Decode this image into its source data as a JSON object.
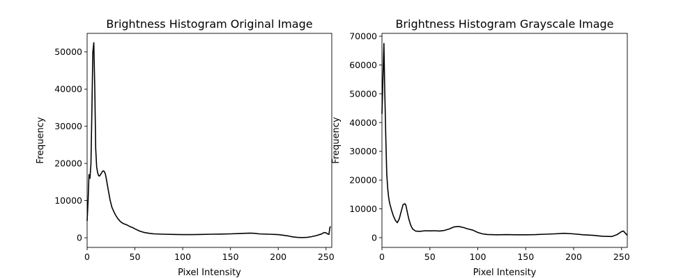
{
  "chart_data": [
    {
      "type": "line",
      "title": "Brightness Histogram Original Image",
      "xlabel": "Pixel Intensity",
      "ylabel": "Frequency",
      "xlim": [
        0,
        256
      ],
      "ylim": [
        -2600,
        55000
      ],
      "xticks": [
        0,
        50,
        100,
        150,
        200,
        250
      ],
      "yticks": [
        0,
        10000,
        20000,
        30000,
        40000,
        50000
      ],
      "grid": false,
      "line_color": "#000000",
      "series": [
        {
          "x": [
            0,
            1,
            2,
            3,
            4,
            5,
            6,
            7,
            8,
            9,
            10,
            11,
            12,
            13,
            14,
            15,
            16,
            17,
            18,
            19,
            20,
            22,
            24,
            26,
            28,
            30,
            32,
            35,
            38,
            40,
            42,
            45,
            48,
            50,
            55,
            60,
            65,
            70,
            80,
            90,
            100,
            110,
            120,
            130,
            140,
            150,
            160,
            165,
            170,
            175,
            180,
            190,
            200,
            205,
            210,
            215,
            220,
            225,
            230,
            235,
            240,
            245,
            248,
            250,
            252,
            253,
            254,
            255
          ],
          "y": [
            4500,
            10000,
            17000,
            16000,
            20000,
            35000,
            50000,
            52500,
            40000,
            24000,
            19000,
            17500,
            16700,
            16600,
            17000,
            17400,
            17800,
            18000,
            17800,
            17200,
            16000,
            13000,
            10200,
            8200,
            7000,
            6000,
            5200,
            4300,
            3800,
            3600,
            3400,
            3000,
            2700,
            2400,
            1800,
            1400,
            1200,
            1050,
            950,
            900,
            850,
            850,
            900,
            950,
            1000,
            1050,
            1150,
            1200,
            1250,
            1200,
            1050,
            950,
            850,
            700,
            500,
            250,
            100,
            50,
            100,
            300,
            600,
            1000,
            1400,
            1300,
            1000,
            900,
            2800,
            3000
          ]
        }
      ]
    },
    {
      "type": "line",
      "title": "Brightness Histogram Grayscale Image",
      "xlabel": "Pixel Intensity",
      "ylabel": "Frequency",
      "xlim": [
        0,
        256
      ],
      "ylim": [
        -3400,
        71000
      ],
      "xticks": [
        0,
        50,
        100,
        150,
        200,
        250
      ],
      "yticks": [
        0,
        10000,
        20000,
        30000,
        40000,
        50000,
        60000,
        70000
      ],
      "grid": false,
      "line_color": "#000000",
      "series": [
        {
          "x": [
            0,
            1,
            2,
            3,
            4,
            5,
            6,
            7,
            8,
            10,
            12,
            14,
            16,
            18,
            20,
            22,
            24,
            25,
            26,
            28,
            30,
            32,
            35,
            38,
            40,
            45,
            50,
            55,
            60,
            65,
            70,
            75,
            80,
            85,
            90,
            95,
            100,
            105,
            110,
            120,
            130,
            140,
            150,
            160,
            170,
            180,
            190,
            200,
            210,
            220,
            230,
            240,
            245,
            250,
            252,
            254,
            256
          ],
          "y": [
            43000,
            55000,
            67500,
            50000,
            35000,
            22000,
            17000,
            14000,
            12000,
            9500,
            7500,
            6000,
            5200,
            6500,
            9000,
            11500,
            11800,
            11200,
            9500,
            6500,
            4300,
            3000,
            2300,
            2200,
            2200,
            2400,
            2350,
            2400,
            2300,
            2500,
            3000,
            3700,
            3900,
            3500,
            3000,
            2600,
            1800,
            1300,
            1100,
            1000,
            1050,
            1000,
            1000,
            1050,
            1200,
            1300,
            1500,
            1300,
            1000,
            800,
            500,
            400,
            1000,
            2100,
            2300,
            1500,
            800
          ]
        }
      ]
    }
  ]
}
